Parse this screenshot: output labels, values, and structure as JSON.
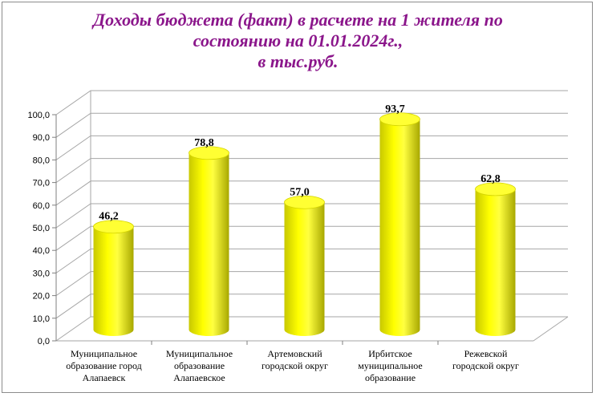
{
  "title": {
    "line1": "Доходы бюджета (факт) в расчете на 1 жителя по",
    "line2": "состоянию на 01.01.2024г.,",
    "line3": "в тыс.руб."
  },
  "colors": {
    "title": "#8b168b",
    "bar": "#ffff00",
    "bar_shade": "#b8b800",
    "grid": "#a6a6a6"
  },
  "chart_data": {
    "type": "bar",
    "title": "Доходы бюджета (факт) в расчете на 1 жителя по состоянию на 01.01.2024г., в тыс.руб.",
    "categories": [
      "Муниципальное образование город Алапаевск",
      "Муниципальное образование Алапаевское",
      "Артемовский городской округ",
      "Ирбитское муниципальное образование",
      "Режевской городской округ"
    ],
    "category_lines": [
      [
        "Муниципальное",
        "образование город",
        "Алапаевск"
      ],
      [
        "Муниципальное",
        "образование",
        "Алапаевское"
      ],
      [
        "Артемовский",
        "городской округ"
      ],
      [
        "Ирбитское",
        "муниципальное",
        "образование"
      ],
      [
        "Режевской",
        "городской округ"
      ]
    ],
    "values": [
      46.2,
      78.8,
      57.0,
      93.7,
      62.8
    ],
    "data_labels": [
      "46,2",
      "78,8",
      "57,0",
      "93,7",
      "62,8"
    ],
    "ylim": [
      0,
      100
    ],
    "y_ticks": [
      "0,0",
      "10,0",
      "20,0",
      "30,0",
      "40,0",
      "50,0",
      "60,0",
      "70,0",
      "80,0",
      "90,0",
      "100,0"
    ],
    "grid": true,
    "legend": "none",
    "style": "3d-cylinder"
  }
}
